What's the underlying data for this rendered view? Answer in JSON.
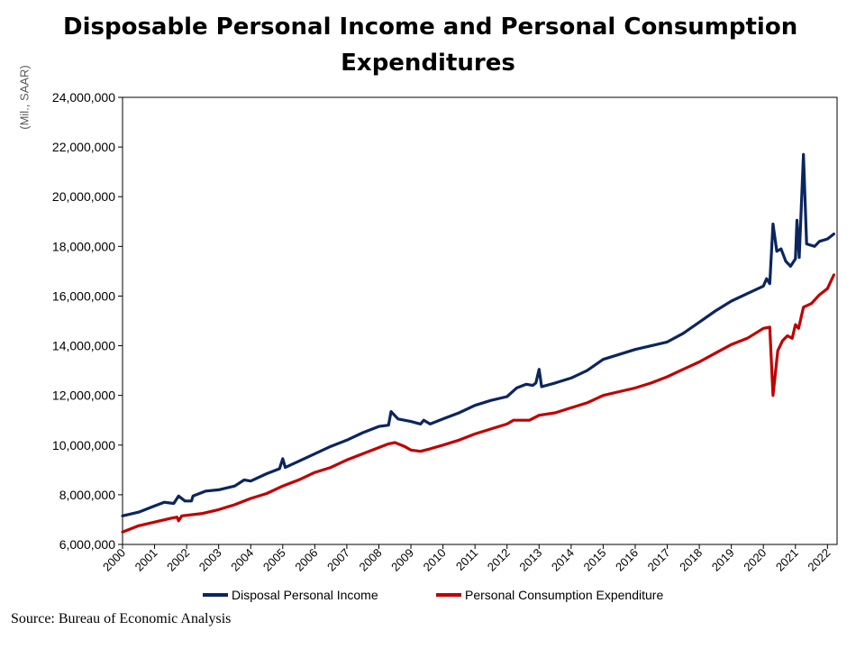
{
  "title_lines": [
    "Disposable Personal Income and Personal Consumption",
    "Expenditures"
  ],
  "source": "Source: Bureau of Economic Analysis",
  "chart_data": {
    "type": "line",
    "title": "Disposable Personal Income and Personal Consumption Expenditures",
    "ylabel": "(Mil., SAAR)",
    "xlabel": "",
    "ylim": [
      6000000,
      24000000
    ],
    "y_ticks": [
      "6,000,000",
      "8,000,000",
      "10,000,000",
      "12,000,000",
      "14,000,000",
      "16,000,000",
      "18,000,000",
      "20,000,000",
      "22,000,000",
      "24,000,000"
    ],
    "x_ticks": [
      "2000",
      "2001",
      "2002",
      "2003",
      "2004",
      "2005",
      "2006",
      "2007",
      "2008",
      "2009",
      "2010",
      "2011",
      "2012",
      "2013",
      "2014",
      "2015",
      "2016",
      "2017",
      "2018",
      "2019",
      "2020",
      "2021",
      "2022"
    ],
    "grid": false,
    "legend_position": "bottom",
    "series": [
      {
        "name": "Disposal Personal Income",
        "color": "#0B2560",
        "points": [
          [
            2000.0,
            7150000
          ],
          [
            2000.5,
            7300000
          ],
          [
            2001.0,
            7550000
          ],
          [
            2001.3,
            7700000
          ],
          [
            2001.6,
            7650000
          ],
          [
            2001.75,
            7950000
          ],
          [
            2001.95,
            7750000
          ],
          [
            2002.15,
            7750000
          ],
          [
            2002.2,
            7950000
          ],
          [
            2002.6,
            8150000
          ],
          [
            2003.0,
            8200000
          ],
          [
            2003.5,
            8350000
          ],
          [
            2003.8,
            8600000
          ],
          [
            2004.0,
            8550000
          ],
          [
            2004.5,
            8850000
          ],
          [
            2004.9,
            9050000
          ],
          [
            2005.0,
            9450000
          ],
          [
            2005.08,
            9100000
          ],
          [
            2005.5,
            9350000
          ],
          [
            2006.0,
            9650000
          ],
          [
            2006.5,
            9950000
          ],
          [
            2007.0,
            10200000
          ],
          [
            2007.5,
            10500000
          ],
          [
            2008.0,
            10750000
          ],
          [
            2008.3,
            10800000
          ],
          [
            2008.38,
            11350000
          ],
          [
            2008.6,
            11050000
          ],
          [
            2009.0,
            10950000
          ],
          [
            2009.3,
            10850000
          ],
          [
            2009.4,
            11000000
          ],
          [
            2009.6,
            10850000
          ],
          [
            2010.0,
            11050000
          ],
          [
            2010.5,
            11300000
          ],
          [
            2011.0,
            11600000
          ],
          [
            2011.5,
            11800000
          ],
          [
            2012.0,
            11950000
          ],
          [
            2012.3,
            12300000
          ],
          [
            2012.6,
            12450000
          ],
          [
            2012.8,
            12400000
          ],
          [
            2012.9,
            12500000
          ],
          [
            2013.0,
            13050000
          ],
          [
            2013.08,
            12350000
          ],
          [
            2013.5,
            12500000
          ],
          [
            2014.0,
            12700000
          ],
          [
            2014.5,
            13000000
          ],
          [
            2015.0,
            13450000
          ],
          [
            2015.5,
            13650000
          ],
          [
            2016.0,
            13850000
          ],
          [
            2016.5,
            14000000
          ],
          [
            2017.0,
            14150000
          ],
          [
            2017.5,
            14500000
          ],
          [
            2018.0,
            14950000
          ],
          [
            2018.5,
            15400000
          ],
          [
            2019.0,
            15800000
          ],
          [
            2019.5,
            16100000
          ],
          [
            2020.0,
            16400000
          ],
          [
            2020.1,
            16700000
          ],
          [
            2020.2,
            16500000
          ],
          [
            2020.3,
            18900000
          ],
          [
            2020.42,
            17800000
          ],
          [
            2020.55,
            17900000
          ],
          [
            2020.7,
            17400000
          ],
          [
            2020.85,
            17200000
          ],
          [
            2021.0,
            17500000
          ],
          [
            2021.05,
            19050000
          ],
          [
            2021.12,
            17550000
          ],
          [
            2021.25,
            21700000
          ],
          [
            2021.35,
            18100000
          ],
          [
            2021.6,
            18000000
          ],
          [
            2021.75,
            18200000
          ],
          [
            2022.0,
            18300000
          ],
          [
            2022.2,
            18500000
          ]
        ]
      },
      {
        "name": "Personal Consumption Expenditure",
        "color": "#C00000",
        "points": [
          [
            2000.0,
            6500000
          ],
          [
            2000.5,
            6750000
          ],
          [
            2001.0,
            6900000
          ],
          [
            2001.5,
            7050000
          ],
          [
            2001.7,
            7100000
          ],
          [
            2001.75,
            6950000
          ],
          [
            2001.85,
            7150000
          ],
          [
            2002.5,
            7250000
          ],
          [
            2003.0,
            7400000
          ],
          [
            2003.5,
            7600000
          ],
          [
            2004.0,
            7850000
          ],
          [
            2004.5,
            8050000
          ],
          [
            2005.0,
            8350000
          ],
          [
            2005.5,
            8600000
          ],
          [
            2006.0,
            8900000
          ],
          [
            2006.5,
            9100000
          ],
          [
            2007.0,
            9400000
          ],
          [
            2007.5,
            9650000
          ],
          [
            2008.0,
            9900000
          ],
          [
            2008.3,
            10050000
          ],
          [
            2008.5,
            10100000
          ],
          [
            2008.8,
            9950000
          ],
          [
            2009.0,
            9800000
          ],
          [
            2009.3,
            9750000
          ],
          [
            2009.6,
            9850000
          ],
          [
            2010.0,
            10000000
          ],
          [
            2010.5,
            10200000
          ],
          [
            2011.0,
            10450000
          ],
          [
            2011.5,
            10650000
          ],
          [
            2012.0,
            10850000
          ],
          [
            2012.2,
            11000000
          ],
          [
            2012.7,
            11000000
          ],
          [
            2013.0,
            11200000
          ],
          [
            2013.5,
            11300000
          ],
          [
            2014.0,
            11500000
          ],
          [
            2014.5,
            11700000
          ],
          [
            2015.0,
            12000000
          ],
          [
            2015.5,
            12150000
          ],
          [
            2016.0,
            12300000
          ],
          [
            2016.5,
            12500000
          ],
          [
            2017.0,
            12750000
          ],
          [
            2017.5,
            13050000
          ],
          [
            2018.0,
            13350000
          ],
          [
            2018.5,
            13700000
          ],
          [
            2019.0,
            14050000
          ],
          [
            2019.5,
            14300000
          ],
          [
            2020.0,
            14700000
          ],
          [
            2020.2,
            14750000
          ],
          [
            2020.3,
            12000000
          ],
          [
            2020.45,
            13800000
          ],
          [
            2020.6,
            14200000
          ],
          [
            2020.75,
            14400000
          ],
          [
            2020.9,
            14300000
          ],
          [
            2021.0,
            14850000
          ],
          [
            2021.1,
            14700000
          ],
          [
            2021.25,
            15550000
          ],
          [
            2021.5,
            15700000
          ],
          [
            2021.75,
            16050000
          ],
          [
            2022.0,
            16300000
          ],
          [
            2022.2,
            16850000
          ]
        ]
      }
    ]
  }
}
